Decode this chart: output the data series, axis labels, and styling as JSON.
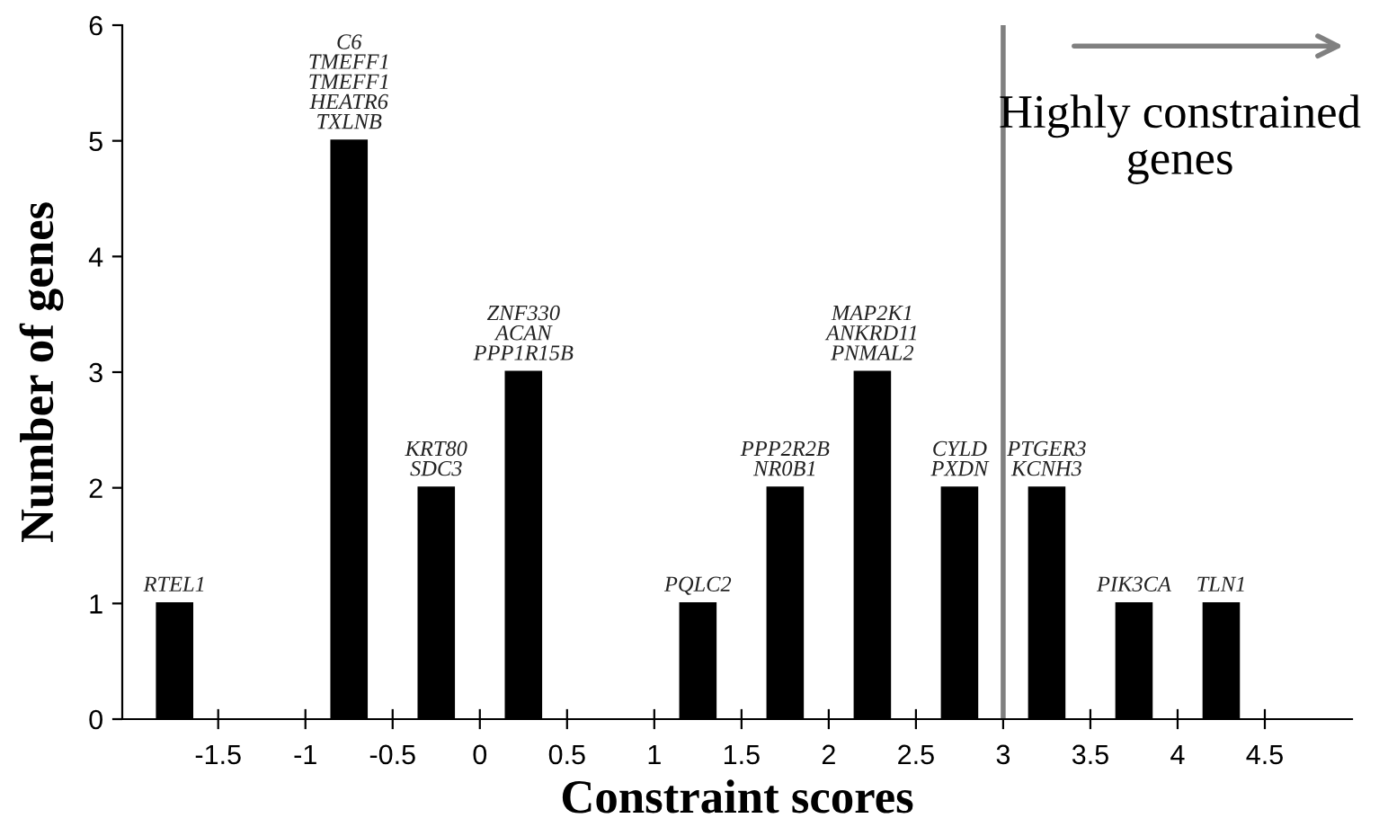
{
  "chart_data": {
    "type": "bar",
    "xlabel": "Constraint scores",
    "ylabel": "Number of genes",
    "x": [
      -1.75,
      -0.75,
      -0.25,
      0.25,
      1.25,
      1.75,
      2.25,
      2.75,
      3.25,
      3.75,
      4.25
    ],
    "values": [
      1,
      5,
      2,
      3,
      1,
      2,
      3,
      2,
      2,
      1,
      1
    ],
    "color": "#000000",
    "xlim": [
      -2.05,
      5
    ],
    "xticks": [
      -1.5,
      -1,
      -0.5,
      0,
      0.5,
      1,
      1.5,
      2,
      2.5,
      3,
      3.5,
      4,
      4.5
    ],
    "ylim": [
      0,
      6
    ],
    "yticks": [
      0,
      1,
      2,
      3,
      4,
      5,
      6
    ],
    "grid": false,
    "legend": false,
    "ref_lines": [
      {
        "axis": "x",
        "value": 3,
        "color": "#808080"
      }
    ],
    "annotations": [
      {
        "text": "RTEL1",
        "x": -1.75,
        "y": 1
      },
      {
        "text": "C6\nTMEFF1\nTMEFF1\nHEATR6\nTXLNB",
        "x": -0.75,
        "y": 5
      },
      {
        "text": "KRT80\nSDC3",
        "x": -0.25,
        "y": 2
      },
      {
        "text": "ZNF330\nACAN\nPPP1R15B",
        "x": 0.25,
        "y": 3
      },
      {
        "text": "PQLC2",
        "x": 1.25,
        "y": 1
      },
      {
        "text": "PPP2R2B\nNR0B1",
        "x": 1.75,
        "y": 2
      },
      {
        "text": "MAP2K1\nANKRD11\nPNMAL2",
        "x": 2.25,
        "y": 3
      },
      {
        "text": "CYLD\nPXDN",
        "x": 2.75,
        "y": 2
      },
      {
        "text": "PTGER3\nKCNH3",
        "x": 3.25,
        "y": 2
      },
      {
        "text": "PIK3CA",
        "x": 3.75,
        "y": 1
      },
      {
        "text": "TLN1",
        "x": 4.25,
        "y": 1
      },
      "Highly constrained\ngenes"
    ]
  }
}
